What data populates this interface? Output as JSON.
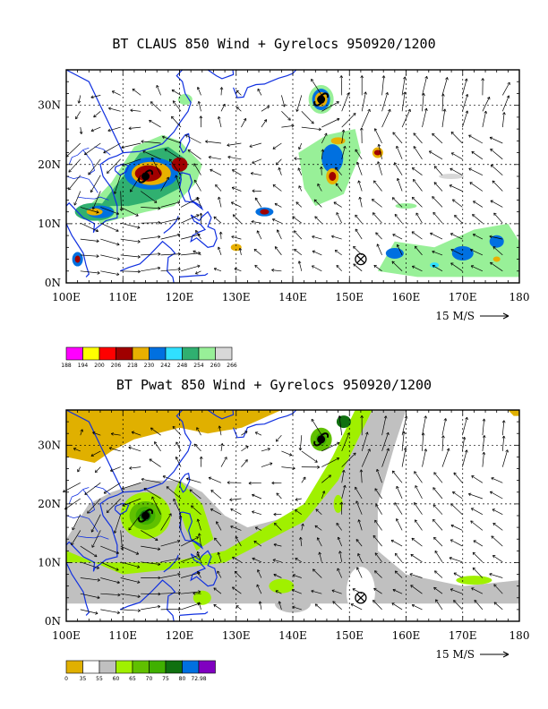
{
  "panels": [
    {
      "title": "BT CLAUS 850 Wind + Gyrelocs 950920/1200",
      "lat_labels": [
        "0N",
        "10N",
        "20N",
        "30N"
      ],
      "lon_labels": [
        "100E",
        "110E",
        "120E",
        "130E",
        "140E",
        "150E",
        "160E",
        "170E",
        "180"
      ],
      "wind_ref": "15 M/S",
      "legend": {
        "colors": [
          "#ff00ff",
          "#ffff00",
          "#ff0000",
          "#a00000",
          "#e8b000",
          "#0070e0",
          "#30e0ff",
          "#30b070",
          "#98f098",
          "#d8d8d8"
        ],
        "labels": [
          "188",
          "194",
          "200",
          "206",
          "218",
          "230",
          "242",
          "248",
          "254",
          "260",
          "266"
        ]
      },
      "storm_symbols": [
        "typhoon-symbol",
        "typhoon-symbol",
        "circle-x-symbol"
      ]
    },
    {
      "title": "BT Pwat 850 Wind + Gyrelocs 950920/1200",
      "lat_labels": [
        "0N",
        "10N",
        "20N",
        "30N"
      ],
      "lon_labels": [
        "100E",
        "110E",
        "120E",
        "130E",
        "140E",
        "150E",
        "160E",
        "170E",
        "180"
      ],
      "wind_ref": "15 M/S",
      "legend": {
        "colors": [
          "#e0b000",
          "#ffffff",
          "#c0c0c0",
          "#a0f000",
          "#60c000",
          "#40b000",
          "#107010",
          "#0070e0",
          "#8000c0"
        ],
        "labels": [
          "0",
          "35",
          "55",
          "60",
          "65",
          "70",
          "75",
          "80",
          "72.98"
        ]
      },
      "storm_symbols": [
        "typhoon-symbol",
        "typhoon-symbol",
        "circle-x-symbol"
      ]
    }
  ]
}
